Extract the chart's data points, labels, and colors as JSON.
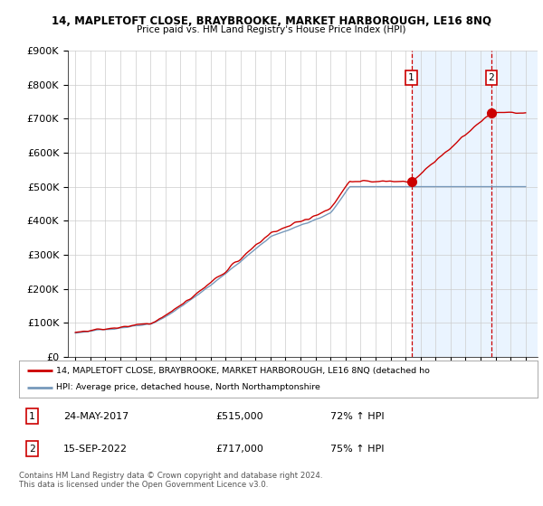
{
  "title1": "14, MAPLETOFT CLOSE, BRAYBROOKE, MARKET HARBOROUGH, LE16 8NQ",
  "title2": "Price paid vs. HM Land Registry's House Price Index (HPI)",
  "ylim": [
    0,
    900000
  ],
  "yticks": [
    0,
    100000,
    200000,
    300000,
    400000,
    500000,
    600000,
    700000,
    800000,
    900000
  ],
  "ytick_labels": [
    "£0",
    "£100K",
    "£200K",
    "£300K",
    "£400K",
    "£500K",
    "£600K",
    "£700K",
    "£800K",
    "£900K"
  ],
  "marker1_x": 2017.39,
  "marker1_y": 515000,
  "marker2_x": 2022.71,
  "marker2_y": 717000,
  "vline1_x": 2017.39,
  "vline2_x": 2022.71,
  "legend_line1": "14, MAPLETOFT CLOSE, BRAYBROOKE, MARKET HARBOROUGH, LE16 8NQ (detached ho",
  "legend_line2": "HPI: Average price, detached house, North Northamptonshire",
  "line1_color": "#cc0000",
  "line2_color": "#7799bb",
  "annotation1_num": "1",
  "annotation1_date": "24-MAY-2017",
  "annotation1_price": "£515,000",
  "annotation1_hpi": "72% ↑ HPI",
  "annotation2_num": "2",
  "annotation2_date": "15-SEP-2022",
  "annotation2_price": "£717,000",
  "annotation2_hpi": "75% ↑ HPI",
  "footnote": "Contains HM Land Registry data © Crown copyright and database right 2024.\nThis data is licensed under the Open Government Licence v3.0.",
  "background_color": "#ffffff",
  "grid_color": "#cccccc",
  "vline_color": "#cc0000",
  "shade_color": "#ddeeff",
  "xmin": 1994.5,
  "xmax": 2025.8
}
